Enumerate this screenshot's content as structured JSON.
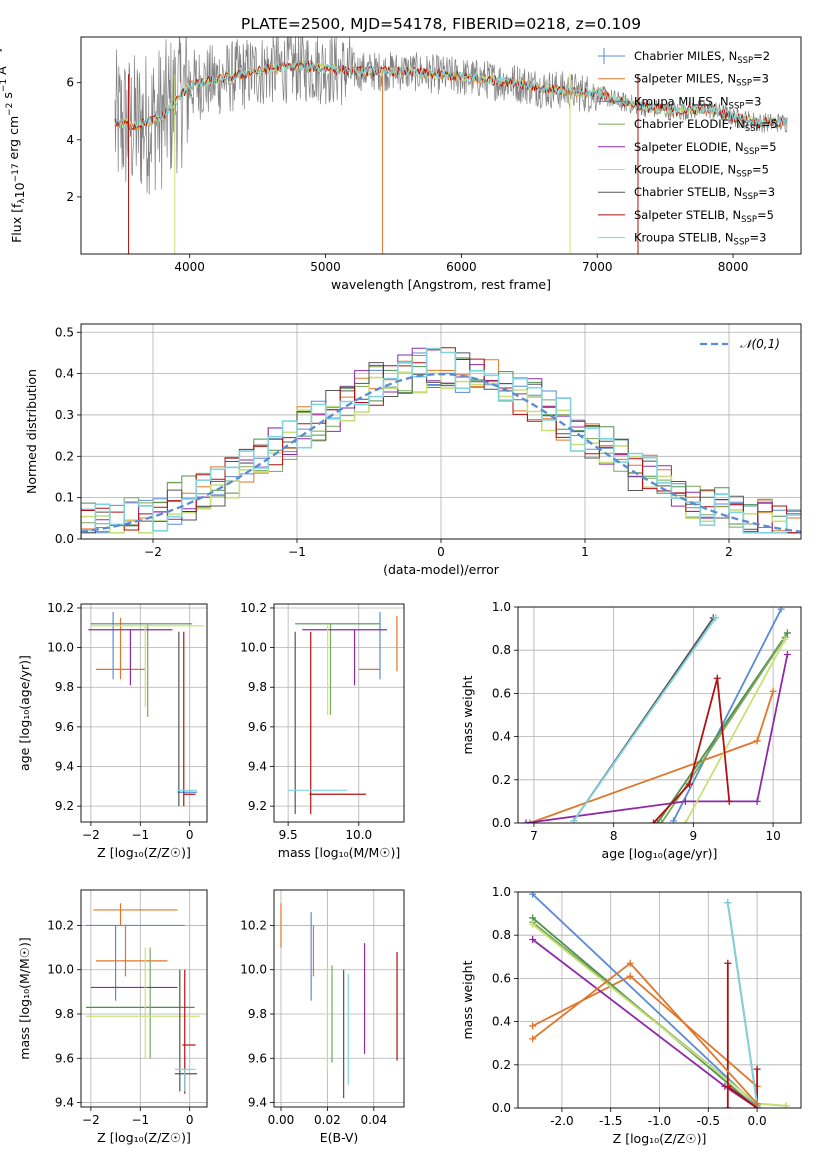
{
  "title": "PLATE=2500, MJD=54178, FIBERID=0218, z=0.109",
  "series": [
    {
      "key": "chab_miles",
      "label": "Chabrier MILES, N",
      "ssp": "=2",
      "color": "#5b8bd6"
    },
    {
      "key": "salp_miles",
      "label": "Salpeter MILES, N",
      "ssp": "=3",
      "color": "#e0762b"
    },
    {
      "key": "krou_miles",
      "label": "Kroupa MILES, N",
      "ssp": "=3",
      "color": "#4f8f4f"
    },
    {
      "key": "chab_elodie",
      "label": "Chabrier ELODIE, N",
      "ssp": "=5",
      "color": "#7aa85a"
    },
    {
      "key": "salp_elodie",
      "label": "Salpeter ELODIE, N",
      "ssp": "=5",
      "color": "#8e2aa8"
    },
    {
      "key": "krou_elodie",
      "label": "Kroupa ELODIE, N",
      "ssp": "=5",
      "color": "#c9e07a"
    },
    {
      "key": "chab_stelib",
      "label": "Chabrier STELIB, N",
      "ssp": "=3",
      "color": "#555555"
    },
    {
      "key": "salp_stelib",
      "label": "Salpeter STELIB, N",
      "ssp": "=5",
      "color": "#b01010"
    },
    {
      "key": "krou_stelib",
      "label": "Kroupa STELIB, N",
      "ssp": "=3",
      "color": "#7fd4df"
    }
  ],
  "chart_data": [
    {
      "id": "spectrum",
      "type": "line",
      "xlabel": "wavelength [Angstrom, rest frame]",
      "ylabel": "Flux [f",
      "xlim": [
        3200,
        8500
      ],
      "ylim": [
        0,
        7.6
      ],
      "xticks": [
        4000,
        5000,
        6000,
        7000,
        8000
      ],
      "yticks": [
        2,
        4,
        6
      ],
      "grid": false,
      "legend": "top-right",
      "continuum": {
        "x": [
          3450,
          3600,
          3800,
          4000,
          4200,
          4400,
          4600,
          4800,
          5000,
          5200,
          5400,
          5600,
          5800,
          6000,
          6200,
          6400,
          6600,
          6800,
          7000,
          7200,
          7400,
          7600,
          7800,
          8000,
          8200,
          8400
        ],
        "y": [
          4.6,
          4.5,
          4.8,
          5.9,
          6.1,
          6.3,
          6.5,
          6.6,
          6.5,
          6.4,
          6.4,
          6.4,
          6.3,
          6.2,
          6.1,
          6.0,
          5.8,
          5.7,
          5.6,
          5.3,
          5.1,
          5.0,
          5.1,
          4.8,
          4.6,
          4.6
        ]
      }
    },
    {
      "id": "residuals",
      "type": "line",
      "xlabel": "(data-model)/error",
      "ylabel": "Normed distribution",
      "xlim": [
        -2.5,
        2.5
      ],
      "ylim": [
        0,
        0.52
      ],
      "xticks": [
        -2,
        -1,
        0,
        1,
        2
      ],
      "yticks": [
        0.0,
        0.1,
        0.2,
        0.3,
        0.4,
        0.5
      ],
      "grid": true,
      "legend": "top-right",
      "gaussian_label": "𝒩(0,1)",
      "bin_edges": [
        -2.5,
        -2.4,
        -2.3,
        -2.2,
        -2.1,
        -2.0,
        -1.9,
        -1.8,
        -1.7,
        -1.6,
        -1.5,
        -1.4,
        -1.3,
        -1.2,
        -1.1,
        -1.0,
        -0.9,
        -0.8,
        -0.7,
        -0.6,
        -0.5,
        -0.4,
        -0.3,
        -0.2,
        -0.1,
        0.0,
        0.1,
        0.2,
        0.3,
        0.4,
        0.5,
        0.6,
        0.7,
        0.8,
        0.9,
        1.0,
        1.1,
        1.2,
        1.3,
        1.4,
        1.5,
        1.6,
        1.7,
        1.8,
        1.9,
        2.0,
        2.1,
        2.2,
        2.3,
        2.4,
        2.5
      ]
    },
    {
      "id": "age_vs_Z",
      "type": "errorbar",
      "xlabel": "Z [log₁₀(Z/Z☉)]",
      "ylabel": "age  [log₁₀(age/yr)]",
      "xlim": [
        -2.2,
        0.35
      ],
      "ylim": [
        9.12,
        10.22
      ],
      "xticks": [
        -2,
        -1,
        0
      ],
      "yticks": [
        9.2,
        9.4,
        9.6,
        9.8,
        10.0,
        10.2
      ],
      "grid": true,
      "points": [
        {
          "s": 0,
          "x": -1.55,
          "y": 10.03,
          "xlo": -1.55,
          "xhi": -1.55,
          "ylo": 9.84,
          "yhi": 10.18
        },
        {
          "s": 0,
          "x": -0.05,
          "y": 9.27,
          "xlo": -0.25,
          "xhi": 0.15,
          "ylo": 9.27,
          "yhi": 9.27
        },
        {
          "s": 1,
          "x": -1.4,
          "y": 9.89,
          "xlo": -1.9,
          "xhi": -0.9,
          "ylo": 9.84,
          "yhi": 10.15
        },
        {
          "s": 2,
          "x": -1.5,
          "y": 10.12,
          "xlo": -2.0,
          "xhi": 0.05,
          "ylo": 10.12,
          "yhi": 10.12
        },
        {
          "s": 3,
          "x": -0.85,
          "y": 9.95,
          "xlo": -0.85,
          "xhi": -0.85,
          "ylo": 9.65,
          "yhi": 10.12
        },
        {
          "s": 4,
          "x": -1.2,
          "y": 10.09,
          "xlo": -2.05,
          "xhi": -0.35,
          "ylo": 9.81,
          "yhi": 10.09
        },
        {
          "s": 5,
          "x": -0.9,
          "y": 10.11,
          "xlo": -2.0,
          "xhi": 0.3,
          "ylo": 9.7,
          "yhi": 10.11
        },
        {
          "s": 6,
          "x": -0.22,
          "y": 9.67,
          "xlo": -0.22,
          "xhi": -0.22,
          "ylo": 9.2,
          "yhi": 10.08
        },
        {
          "s": 7,
          "x": -0.12,
          "y": 9.26,
          "xlo": -0.12,
          "xhi": 0.12,
          "ylo": 9.2,
          "yhi": 10.08
        },
        {
          "s": 8,
          "x": 0.05,
          "y": 9.28,
          "xlo": -0.25,
          "xhi": 0.15,
          "ylo": 9.28,
          "yhi": 9.28
        }
      ]
    },
    {
      "id": "age_vs_mass",
      "type": "errorbar",
      "xlabel": "mass [log₁₀(M/M☉)]",
      "ylabel": "",
      "xlim": [
        9.4,
        10.32
      ],
      "ylim": [
        9.12,
        10.22
      ],
      "xticks": [
        9.5,
        10.0
      ],
      "yticks": [
        9.2,
        9.4,
        9.6,
        9.8,
        10.0,
        10.2
      ],
      "grid": true,
      "points": [
        {
          "s": 0,
          "x": 10.15,
          "y": 10.02,
          "xlo": 10.15,
          "xhi": 10.15,
          "ylo": 9.84,
          "yhi": 10.18
        },
        {
          "s": 1,
          "x": 10.1,
          "y": 9.89,
          "xlo": 10.0,
          "xhi": 10.15,
          "ylo": 9.89,
          "yhi": 9.89
        },
        {
          "s": 2,
          "x": 9.85,
          "y": 10.12,
          "xlo": 9.55,
          "xhi": 10.15,
          "ylo": 10.12,
          "yhi": 10.12
        },
        {
          "s": 3,
          "x": 9.8,
          "y": 9.95,
          "xlo": 9.8,
          "xhi": 9.8,
          "ylo": 9.66,
          "yhi": 10.12
        },
        {
          "s": 4,
          "x": 9.97,
          "y": 10.09,
          "xlo": 9.6,
          "xhi": 10.2,
          "ylo": 9.81,
          "yhi": 10.09
        },
        {
          "s": 5,
          "x": 9.78,
          "y": 9.85,
          "xlo": 9.78,
          "xhi": 9.78,
          "ylo": 9.66,
          "yhi": 10.12
        },
        {
          "s": 6,
          "x": 9.55,
          "y": 9.65,
          "xlo": 9.55,
          "xhi": 9.55,
          "ylo": 9.16,
          "yhi": 10.08
        },
        {
          "s": 7,
          "x": 9.66,
          "y": 9.26,
          "xlo": 9.65,
          "xhi": 10.05,
          "ylo": 9.16,
          "yhi": 10.08
        },
        {
          "s": 8,
          "x": 9.65,
          "y": 9.28,
          "xlo": 9.5,
          "xhi": 9.92,
          "ylo": 9.28,
          "yhi": 9.28
        },
        {
          "s": 1,
          "x": 10.27,
          "y": 10.1,
          "xlo": 10.27,
          "xhi": 10.27,
          "ylo": 9.88,
          "yhi": 10.16
        }
      ]
    },
    {
      "id": "weight_vs_age",
      "type": "line",
      "xlabel": "age  [log₁₀(age/yr)]",
      "ylabel": "mass weight",
      "xlim": [
        6.8,
        10.35
      ],
      "ylim": [
        0,
        1
      ],
      "xticks": [
        7,
        8,
        9,
        10
      ],
      "yticks": [
        0.0,
        0.2,
        0.4,
        0.6,
        0.8,
        1.0
      ],
      "grid": true,
      "lines": [
        {
          "s": 0,
          "x": [
            8.75,
            10.1
          ],
          "y": [
            0.01,
            0.99
          ]
        },
        {
          "s": 1,
          "x": [
            6.95,
            9.8,
            10.0
          ],
          "y": [
            0.0,
            0.38,
            0.61
          ]
        },
        {
          "s": 2,
          "x": [
            8.55,
            10.18
          ],
          "y": [
            0.0,
            0.88
          ]
        },
        {
          "s": 3,
          "x": [
            8.6,
            10.15
          ],
          "y": [
            0.0,
            0.86
          ]
        },
        {
          "s": 4,
          "x": [
            6.9,
            8.9,
            9.8,
            10.18
          ],
          "y": [
            0.0,
            0.1,
            0.1,
            0.78
          ]
        },
        {
          "s": 5,
          "x": [
            8.9,
            10.15
          ],
          "y": [
            0.0,
            0.85
          ]
        },
        {
          "s": 6,
          "x": [
            7.5,
            9.25
          ],
          "y": [
            0.01,
            0.95
          ]
        },
        {
          "s": 7,
          "x": [
            8.5,
            8.95,
            9.3,
            9.45
          ],
          "y": [
            0.0,
            0.18,
            0.67,
            0.1
          ]
        },
        {
          "s": 8,
          "x": [
            7.5,
            9.28
          ],
          "y": [
            0.01,
            0.95
          ]
        }
      ]
    },
    {
      "id": "mass_vs_Z",
      "type": "errorbar",
      "xlabel": "Z [log₁₀(Z/Z☉)]",
      "ylabel": "mass [log₁₀(M/M☉)]",
      "xlim": [
        -2.2,
        0.35
      ],
      "ylim": [
        9.38,
        10.36
      ],
      "xticks": [
        -2,
        -1,
        0
      ],
      "yticks": [
        9.4,
        9.6,
        9.8,
        10.0,
        10.2
      ],
      "grid": true,
      "points": [
        {
          "s": 0,
          "x": -1.5,
          "y": 10.2,
          "xlo": -2.1,
          "xhi": -0.1,
          "ylo": 9.86,
          "yhi": 10.2
        },
        {
          "s": 1,
          "x": -1.3,
          "y": 10.04,
          "xlo": -1.9,
          "xhi": -0.45,
          "ylo": 9.97,
          "yhi": 10.2
        },
        {
          "s": 2,
          "x": -1.0,
          "y": 9.83,
          "xlo": -2.1,
          "xhi": 0.1,
          "ylo": 9.83,
          "yhi": 9.83
        },
        {
          "s": 3,
          "x": -0.8,
          "y": 9.9,
          "xlo": -0.8,
          "xhi": -0.8,
          "ylo": 9.6,
          "yhi": 10.1
        },
        {
          "s": 4,
          "x": -1.2,
          "y": 9.92,
          "xlo": -2.0,
          "xhi": -0.25,
          "ylo": 9.92,
          "yhi": 9.92
        },
        {
          "s": 5,
          "x": -0.9,
          "y": 9.79,
          "xlo": -2.1,
          "xhi": 0.2,
          "ylo": 9.6,
          "yhi": 10.1
        },
        {
          "s": 6,
          "x": -0.2,
          "y": 9.53,
          "xlo": -0.3,
          "xhi": 0.15,
          "ylo": 9.45,
          "yhi": 10.0
        },
        {
          "s": 7,
          "x": -0.1,
          "y": 9.66,
          "xlo": -0.15,
          "xhi": 0.12,
          "ylo": 9.44,
          "yhi": 10.0
        },
        {
          "s": 8,
          "x": -0.1,
          "y": 9.55,
          "xlo": -0.3,
          "xhi": 0.12,
          "ylo": 9.45,
          "yhi": 9.55
        },
        {
          "s": 1,
          "x": -1.4,
          "y": 10.27,
          "xlo": -1.95,
          "xhi": -0.25,
          "ylo": 10.2,
          "yhi": 10.3
        }
      ]
    },
    {
      "id": "mass_vs_ebv",
      "type": "errorbar",
      "xlabel": "E(B-V)",
      "ylabel": "",
      "xlim": [
        -0.003,
        0.053
      ],
      "ylim": [
        9.38,
        10.36
      ],
      "xticks": [
        0.0,
        0.02,
        0.04
      ],
      "yticks": [
        9.4,
        9.6,
        9.8,
        10.0,
        10.2
      ],
      "grid": true,
      "points": [
        {
          "s": 1,
          "x": 0.0,
          "y": 10.2,
          "xlo": 0.0,
          "xhi": 0.0,
          "ylo": 10.1,
          "yhi": 10.3
        },
        {
          "s": 0,
          "x": 0.013,
          "y": 10.1,
          "xlo": 0.013,
          "xhi": 0.013,
          "ylo": 9.86,
          "yhi": 10.26
        },
        {
          "s": 1,
          "x": 0.014,
          "y": 10.0,
          "xlo": 0.014,
          "xhi": 0.014,
          "ylo": 9.97,
          "yhi": 10.2
        },
        {
          "s": 5,
          "x": 0.02,
          "y": 9.8,
          "xlo": 0.02,
          "xhi": 0.02,
          "ylo": 9.55,
          "yhi": 10.02
        },
        {
          "s": 3,
          "x": 0.022,
          "y": 9.85,
          "xlo": 0.022,
          "xhi": 0.022,
          "ylo": 9.58,
          "yhi": 10.02
        },
        {
          "s": 6,
          "x": 0.027,
          "y": 9.7,
          "xlo": 0.027,
          "xhi": 0.027,
          "ylo": 9.42,
          "yhi": 10.0
        },
        {
          "s": 8,
          "x": 0.029,
          "y": 9.7,
          "xlo": 0.029,
          "xhi": 0.029,
          "ylo": 9.48,
          "yhi": 9.98
        },
        {
          "s": 4,
          "x": 0.036,
          "y": 9.85,
          "xlo": 0.036,
          "xhi": 0.036,
          "ylo": 9.62,
          "yhi": 10.12
        },
        {
          "s": 7,
          "x": 0.05,
          "y": 9.85,
          "xlo": 0.05,
          "xhi": 0.05,
          "ylo": 9.59,
          "yhi": 10.08
        }
      ]
    },
    {
      "id": "weight_vs_Z",
      "type": "line",
      "xlabel": "Z [log₁₀(Z/Z☉)]",
      "ylabel": "mass weight",
      "xlim": [
        -2.45,
        0.45
      ],
      "ylim": [
        0,
        1
      ],
      "xticks": [
        -2.0,
        -1.5,
        -1.0,
        -0.5,
        0.0
      ],
      "yticks": [
        0.0,
        0.2,
        0.4,
        0.6,
        0.8,
        1.0
      ],
      "grid": true,
      "lines": [
        {
          "s": 0,
          "x": [
            -2.3,
            0.0
          ],
          "y": [
            0.99,
            0.01
          ]
        },
        {
          "s": 1,
          "x": [
            -2.3,
            -1.3,
            0.0
          ],
          "y": [
            0.38,
            0.61,
            0.1
          ]
        },
        {
          "s": 2,
          "x": [
            -2.3,
            0.0
          ],
          "y": [
            0.88,
            0.0
          ]
        },
        {
          "s": 3,
          "x": [
            -2.3,
            0.0,
            0.3
          ],
          "y": [
            0.86,
            0.02,
            0.01
          ]
        },
        {
          "s": 4,
          "x": [
            -2.3,
            -0.33,
            0.0
          ],
          "y": [
            0.78,
            0.1,
            0.0
          ]
        },
        {
          "s": 5,
          "x": [
            -2.3,
            0.0,
            0.3
          ],
          "y": [
            0.85,
            0.02,
            0.01
          ]
        },
        {
          "s": 6,
          "x": [
            -0.3,
            0.0
          ],
          "y": [
            0.95,
            0.02
          ]
        },
        {
          "s": 7,
          "x": [
            -0.3,
            -0.3,
            -0.3,
            0.0,
            0.0
          ],
          "y": [
            0.0,
            0.67,
            0.1,
            0.0,
            0.18
          ]
        },
        {
          "s": 8,
          "x": [
            -0.3,
            0.0
          ],
          "y": [
            0.95,
            0.02
          ]
        },
        {
          "s": 1,
          "x": [
            -2.3,
            -1.3,
            0.0
          ],
          "y": [
            0.32,
            0.67,
            0.02
          ]
        }
      ]
    }
  ]
}
